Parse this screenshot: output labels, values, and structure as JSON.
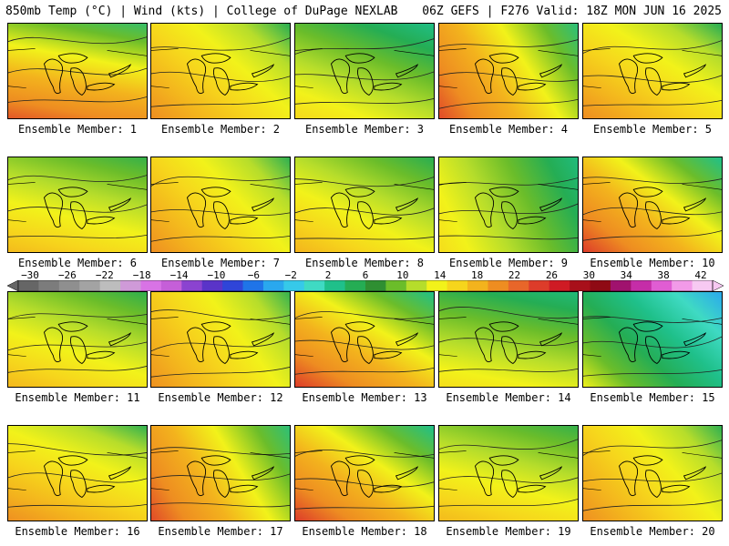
{
  "header": {
    "left_title": "850mb Temp (°C) | Wind (kts) | College of DuPage NEXLAB",
    "right_title": "06Z GEFS | F276 Valid: 18Z MON JUN 16 2025"
  },
  "colorbar": {
    "labels": [
      "−30",
      "−26",
      "−22",
      "−18",
      "−14",
      "−10",
      "−6",
      "−2",
      "2",
      "6",
      "10",
      "14",
      "18",
      "22",
      "26",
      "30",
      "34",
      "38",
      "42"
    ],
    "colors": [
      "#666666",
      "#7c7c7c",
      "#8f8f8f",
      "#a3a3a3",
      "#bdbdbd",
      "#cf9ad8",
      "#d873e5",
      "#c55fd8",
      "#8b43d0",
      "#5a34c8",
      "#2f45d8",
      "#1f74e8",
      "#2aa8ee",
      "#36c9e9",
      "#3fdac3",
      "#1fc08a",
      "#25ad54",
      "#2f8f32",
      "#6bbd2a",
      "#b6dd2b",
      "#f2f21a",
      "#f6d51c",
      "#f3b31d",
      "#ee8d21",
      "#e8662a",
      "#dd3c2a",
      "#cf1b24",
      "#a8101a",
      "#8f0a14",
      "#a0126e",
      "#c52da8",
      "#e05dd3",
      "#f29ae8",
      "#f7c9f2"
    ]
  },
  "members": [
    {
      "label": "Ensemble Member: 1",
      "scheme": "hot"
    },
    {
      "label": "Ensemble Member: 2",
      "scheme": "warm"
    },
    {
      "label": "Ensemble Member: 3",
      "scheme": "cool"
    },
    {
      "label": "Ensemble Member: 4",
      "scheme": "hot"
    },
    {
      "label": "Ensemble Member: 5",
      "scheme": "warm"
    },
    {
      "label": "Ensemble Member: 6",
      "scheme": "mild"
    },
    {
      "label": "Ensemble Member: 7",
      "scheme": "warm"
    },
    {
      "label": "Ensemble Member: 8",
      "scheme": "mild"
    },
    {
      "label": "Ensemble Member: 9",
      "scheme": "cool"
    },
    {
      "label": "Ensemble Member: 10",
      "scheme": "hot"
    },
    {
      "label": "Ensemble Member: 11",
      "scheme": "mild"
    },
    {
      "label": "Ensemble Member: 12",
      "scheme": "warm"
    },
    {
      "label": "Ensemble Member: 13",
      "scheme": "hot"
    },
    {
      "label": "Ensemble Member: 14",
      "scheme": "cool"
    },
    {
      "label": "Ensemble Member: 15",
      "scheme": "cold"
    },
    {
      "label": "Ensemble Member: 16",
      "scheme": "warm"
    },
    {
      "label": "Ensemble Member: 17",
      "scheme": "hot"
    },
    {
      "label": "Ensemble Member: 18",
      "scheme": "hot"
    },
    {
      "label": "Ensemble Member: 19",
      "scheme": "mild"
    },
    {
      "label": "Ensemble Member: 20",
      "scheme": "warm"
    }
  ]
}
